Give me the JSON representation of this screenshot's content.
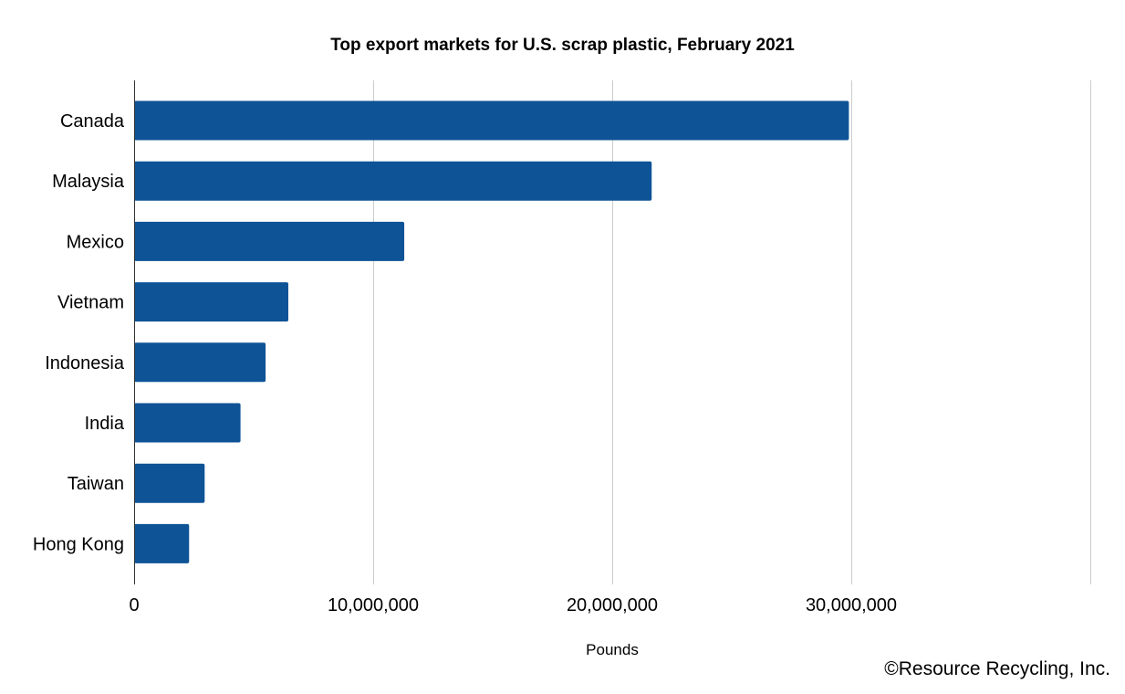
{
  "chart_data": {
    "type": "bar",
    "orientation": "horizontal",
    "title": "Top export markets for U.S. scrap plastic, February 2021",
    "xlabel": "Pounds",
    "categories": [
      "Canada",
      "Malaysia",
      "Mexico",
      "Vietnam",
      "Indonesia",
      "India",
      "Taiwan",
      "Hong Kong"
    ],
    "values": [
      29900000,
      21650000,
      11300000,
      6450000,
      5500000,
      4450000,
      2950000,
      2300000
    ],
    "xlim": [
      0,
      40000000
    ],
    "ticks": [
      0,
      10000000,
      20000000,
      30000000
    ],
    "tick_labels": [
      "0",
      "10,000,000",
      "20,000,000",
      "30,000,000"
    ],
    "grid": true,
    "bar_color": "#0e5396",
    "grid_color": "#cccccc",
    "axis_color": "#333333"
  },
  "footer": {
    "copyright": "©Resource Recycling, Inc."
  }
}
